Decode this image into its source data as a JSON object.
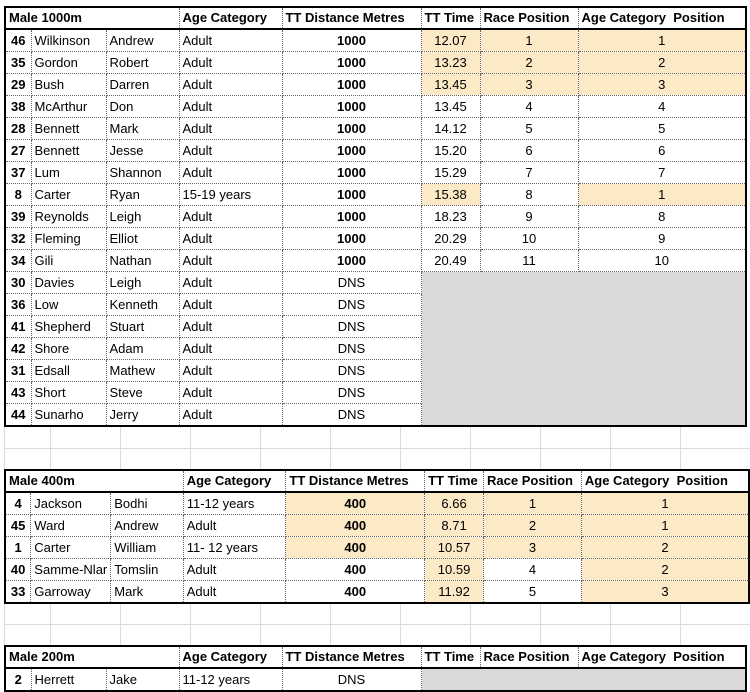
{
  "colors": {
    "row_highlight": "#FCE9C5",
    "dns_block_gray": "#D9D9D9",
    "gap_gridline": "#DCDCDC",
    "table_border": "#000000"
  },
  "tables": [
    {
      "title": "Male 1000m",
      "headers": {
        "age": "Age Category",
        "dist": "TT Distance Metres",
        "time": "TT Time",
        "race": "Race Position",
        "cat": "Age Category  Position"
      },
      "rows": [
        {
          "num": "46",
          "last": "Wilkinson",
          "first": "Andrew",
          "age": "Adult",
          "dist": "1000",
          "time": "12.07",
          "race": "1",
          "cat": "1",
          "hl": [
            "time",
            "race",
            "cat"
          ]
        },
        {
          "num": "35",
          "last": "Gordon",
          "first": "Robert",
          "age": "Adult",
          "dist": "1000",
          "time": "13.23",
          "race": "2",
          "cat": "2",
          "hl": [
            "time",
            "race",
            "cat"
          ]
        },
        {
          "num": "29",
          "last": "Bush",
          "first": "Darren",
          "age": "Adult",
          "dist": "1000",
          "time": "13.45",
          "race": "3",
          "cat": "3",
          "hl": [
            "time",
            "race",
            "cat"
          ]
        },
        {
          "num": "38",
          "last": "McArthur",
          "first": "Don",
          "age": "Adult",
          "dist": "1000",
          "time": "13.45",
          "race": "4",
          "cat": "4",
          "hl": []
        },
        {
          "num": "28",
          "last": "Bennett",
          "first": "Mark",
          "age": "Adult",
          "dist": "1000",
          "time": "14.12",
          "race": "5",
          "cat": "5",
          "hl": []
        },
        {
          "num": "27",
          "last": "Bennett",
          "first": "Jesse",
          "age": "Adult",
          "dist": "1000",
          "time": "15.20",
          "race": "6",
          "cat": "6",
          "hl": []
        },
        {
          "num": "37",
          "last": "Lum",
          "first": "Shannon",
          "age": "Adult",
          "dist": "1000",
          "time": "15.29",
          "race": "7",
          "cat": "7",
          "hl": []
        },
        {
          "num": "8",
          "last": "Carter",
          "first": "Ryan",
          "age": "15-19 years",
          "dist": "1000",
          "time": "15.38",
          "race": "8",
          "cat": "1",
          "hl": [
            "time",
            "cat"
          ]
        },
        {
          "num": "39",
          "last": "Reynolds",
          "first": "Leigh",
          "age": "Adult",
          "dist": "1000",
          "time": "18.23",
          "race": "9",
          "cat": "8",
          "hl": []
        },
        {
          "num": "32",
          "last": "Fleming",
          "first": "Elliot",
          "age": "Adult",
          "dist": "1000",
          "time": "20.29",
          "race": "10",
          "cat": "9",
          "hl": []
        },
        {
          "num": "34",
          "last": "Gili",
          "first": "Nathan",
          "age": "Adult",
          "dist": "1000",
          "time": "20.49",
          "race": "11",
          "cat": "10",
          "hl": []
        },
        {
          "num": "30",
          "last": "Davies",
          "first": "Leigh",
          "age": "Adult",
          "dist": "DNS",
          "dns": true
        },
        {
          "num": "36",
          "last": "Low",
          "first": "Kenneth",
          "age": "Adult",
          "dist": "DNS",
          "dns": true
        },
        {
          "num": "41",
          "last": "Shepherd",
          "first": "Stuart",
          "age": "Adult",
          "dist": "DNS",
          "dns": true
        },
        {
          "num": "42",
          "last": "Shore",
          "first": "Adam",
          "age": "Adult",
          "dist": "DNS",
          "dns": true
        },
        {
          "num": "31",
          "last": "Edsall",
          "first": "Mathew",
          "age": "Adult",
          "dist": "DNS",
          "dns": true
        },
        {
          "num": "43",
          "last": "Short",
          "first": "Steve",
          "age": "Adult",
          "dist": "DNS",
          "dns": true
        },
        {
          "num": "44",
          "last": "Sunarho",
          "first": "Jerry",
          "age": "Adult",
          "dist": "DNS",
          "dns": true
        }
      ]
    },
    {
      "title": "Male 400m",
      "headers": {
        "age": "Age Category",
        "dist": "TT Distance Metres",
        "time": "TT Time",
        "race": "Race Position",
        "cat": "Age Category  Position"
      },
      "rows": [
        {
          "num": "4",
          "last": "Jackson",
          "first": "Bodhi",
          "age": "11-12 years",
          "dist": "400",
          "time": "6.66",
          "race": "1",
          "cat": "1",
          "hl": [
            "dist",
            "time",
            "race",
            "cat"
          ]
        },
        {
          "num": "45",
          "last": "Ward",
          "first": "Andrew",
          "age": "Adult",
          "dist": "400",
          "time": "8.71",
          "race": "2",
          "cat": "1",
          "hl": [
            "dist",
            "time",
            "race",
            "cat"
          ]
        },
        {
          "num": "1",
          "last": "Carter",
          "first": "William",
          "age": "11- 12 years",
          "dist": "400",
          "time": "10.57",
          "race": "3",
          "cat": "2",
          "hl": [
            "dist",
            "time",
            "race",
            "cat"
          ]
        },
        {
          "num": "40",
          "last": "Samme-Nlar",
          "first": "Tomslin",
          "age": "Adult",
          "dist": "400",
          "time": "10.59",
          "race": "4",
          "cat": "2",
          "hl": [
            "time",
            "cat"
          ]
        },
        {
          "num": "33",
          "last": "Garroway",
          "first": "Mark",
          "age": "Adult",
          "dist": "400",
          "time": "11.92",
          "race": "5",
          "cat": "3",
          "hl": [
            "time",
            "cat"
          ]
        }
      ]
    },
    {
      "title": "Male 200m",
      "headers": {
        "age": "Age Category",
        "dist": "TT Distance Metres",
        "time": "TT Time",
        "race": "Race Position",
        "cat": "Age Category  Position"
      },
      "rows": [
        {
          "num": "2",
          "last": "Herrett",
          "first": "Jake",
          "age": "11-12 years",
          "dist": "DNS",
          "dns": true
        }
      ]
    }
  ]
}
